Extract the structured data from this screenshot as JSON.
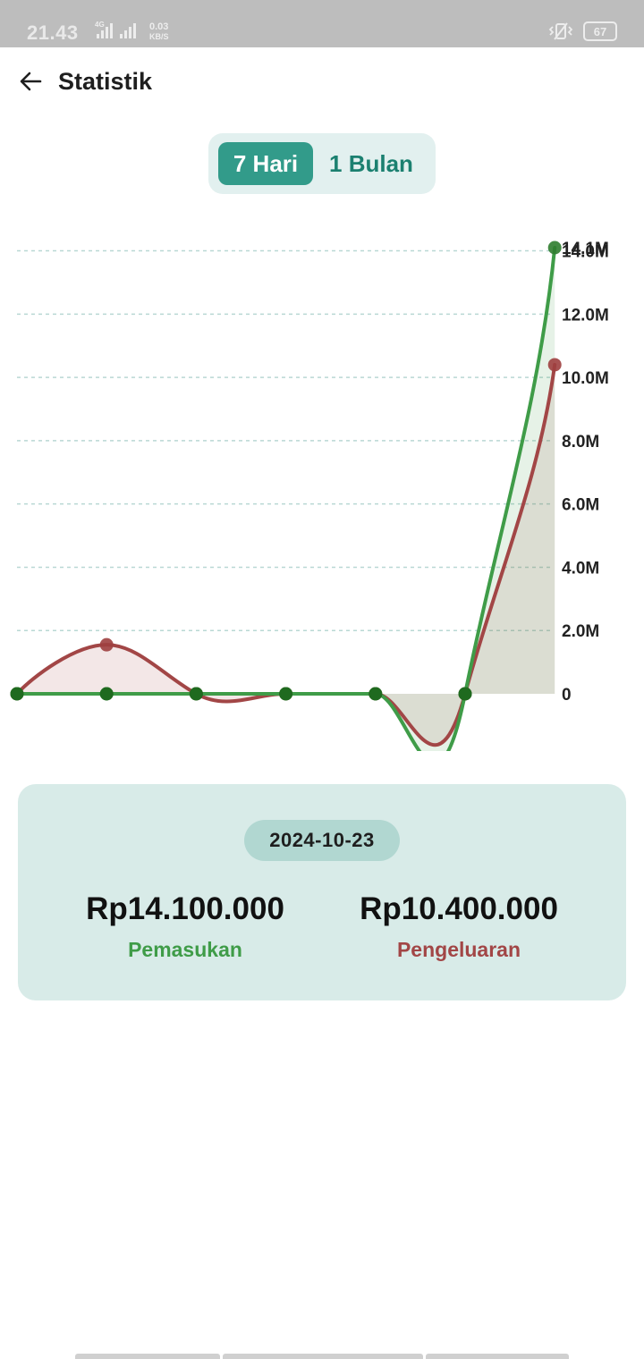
{
  "status_bar": {
    "time": "21.43",
    "network_type": "4G",
    "speed_value": "0.03",
    "speed_unit": "KB/S",
    "battery": "67"
  },
  "app_bar": {
    "title": "Statistik",
    "back_icon": "arrow-left-icon"
  },
  "range_toggle": {
    "options": [
      {
        "label": "7 Hari",
        "selected": true
      },
      {
        "label": "1 Bulan",
        "selected": false
      }
    ]
  },
  "colors": {
    "income": "#3f9c48",
    "expense": "#a24646",
    "accent": "#329b8a",
    "income_point": "#2f7d2f",
    "expense_point": "#9e3f3f"
  },
  "chart_data": {
    "type": "line",
    "x": [
      1,
      2,
      3,
      4,
      5,
      6,
      7
    ],
    "y_tick_labels": [
      "0",
      "2.0M",
      "4.0M",
      "6.0M",
      "8.0M",
      "10.0M",
      "12.0M",
      "14.0M"
    ],
    "y_ticks": [
      0,
      2000000,
      4000000,
      6000000,
      8000000,
      10000000,
      12000000,
      14000000
    ],
    "max_label": "14.1M",
    "max_value": 14100000,
    "ylim": [
      0,
      14100000
    ],
    "grid": true,
    "series": [
      {
        "key": "income",
        "values": [
          0,
          0,
          0,
          0,
          0,
          0,
          14100000
        ]
      },
      {
        "key": "expense",
        "values": [
          0,
          1550000,
          0,
          0,
          0,
          0,
          10400000
        ]
      }
    ]
  },
  "summary": {
    "date": "2024-10-23",
    "income_amount": "Rp14.100.000",
    "income_label": "Pemasukan",
    "expense_amount": "Rp10.400.000",
    "expense_label": "Pengeluaran"
  }
}
